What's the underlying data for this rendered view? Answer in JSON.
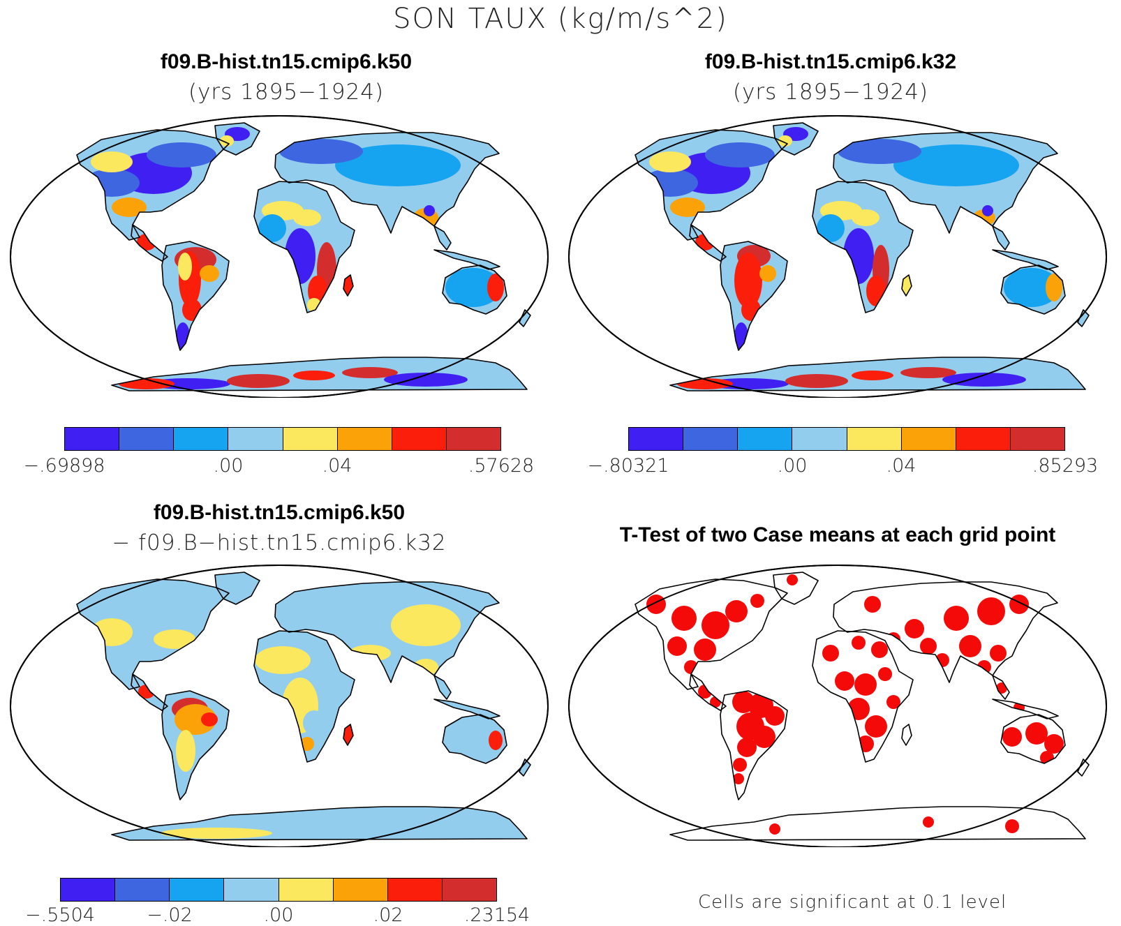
{
  "title": "SON TAUX (kg/m/s^2)",
  "colors": {
    "bins": [
      "#3f1ff2",
      "#3d66e0",
      "#16a4f0",
      "#93cdee",
      "#fbe85f",
      "#fba208",
      "#fb1e0b",
      "#d32d2d"
    ],
    "signif": "#f50a0a",
    "land_base": "#93cdee"
  },
  "panels": [
    {
      "id": "k50",
      "title": "f09.B-hist.tn15.cmip6.k50",
      "subtitle": "(yrs 1895−1924)",
      "colorbar": {
        "labels": [
          "−.69898",
          ".00",
          ".04",
          ".57628"
        ]
      }
    },
    {
      "id": "k32",
      "title": "f09.B-hist.tn15.cmip6.k32",
      "subtitle": "(yrs 1895−1924)",
      "colorbar": {
        "labels": [
          "−.80321",
          ".00",
          ".04",
          ".85293"
        ]
      }
    },
    {
      "id": "diff",
      "title": "f09.B-hist.tn15.cmip6.k50",
      "subtitle": "− f09.B−hist.tn15.cmip6.k32",
      "colorbar": {
        "labels": [
          "−.5504",
          "−.02",
          ".00",
          ".02",
          ".23154"
        ]
      }
    },
    {
      "id": "ttest",
      "title": "T-Test of two Case means at each grid point",
      "note": "Cells are significant at 0.1 level"
    }
  ]
}
